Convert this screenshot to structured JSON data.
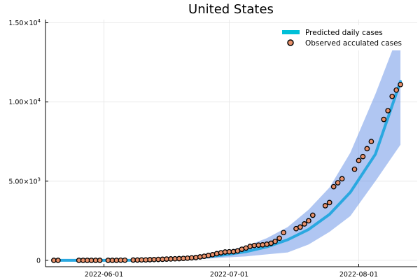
{
  "chart_data": {
    "type": "line",
    "title": "United States",
    "xlabel": "",
    "ylabel": "",
    "x_type": "date",
    "xlim": [
      "2022-05-18",
      "2022-08-15"
    ],
    "ylim": [
      -400,
      15200
    ],
    "x_ticks": [
      {
        "value": "2022-06-01",
        "label": "2022-06-01"
      },
      {
        "value": "2022-07-01",
        "label": "2022-07-01"
      },
      {
        "value": "2022-08-01",
        "label": "2022-08-01"
      }
    ],
    "y_ticks": [
      {
        "value": 0,
        "base": "0",
        "exp": ""
      },
      {
        "value": 5000,
        "base": "5.00×10",
        "exp": "3"
      },
      {
        "value": 10000,
        "base": "1.00×10",
        "exp": "4"
      },
      {
        "value": 15000,
        "base": "1.50×10",
        "exp": "4"
      }
    ],
    "grid": true,
    "legend_position": "top-right",
    "legend": [
      {
        "label": "Predicted daily cases",
        "kind": "line",
        "color": "#00c0d8"
      },
      {
        "label": "Observed acculated cases",
        "kind": "marker",
        "color": "#e8906a"
      }
    ],
    "colors": {
      "band": "#6f98e8",
      "predicted": "#2aa8e0",
      "observed_fill": "#e8906a",
      "observed_edge": "#000000"
    },
    "series": [
      {
        "name": "Predicted daily cases",
        "kind": "line",
        "x": [
          "2022-05-20",
          "2022-06-01",
          "2022-06-10",
          "2022-06-20",
          "2022-06-25",
          "2022-06-30",
          "2022-07-05",
          "2022-07-10",
          "2022-07-15",
          "2022-07-20",
          "2022-07-25",
          "2022-07-30",
          "2022-08-05",
          "2022-08-11"
        ],
        "y": [
          0,
          0,
          5,
          100,
          200,
          350,
          550,
          850,
          1300,
          1950,
          2900,
          4300,
          6700,
          11300
        ],
        "lower": [
          0,
          0,
          0,
          50,
          100,
          180,
          250,
          380,
          500,
          1000,
          1800,
          2800,
          5000,
          7300
        ],
        "upper": [
          0,
          0,
          20,
          180,
          300,
          560,
          900,
          1400,
          2100,
          3200,
          4600,
          6800,
          10500,
          14600
        ]
      },
      {
        "name": "Observed acculated cases",
        "kind": "scatter",
        "points": [
          [
            "2022-05-20",
            0
          ],
          [
            "2022-05-21",
            0
          ],
          [
            "2022-05-26",
            0
          ],
          [
            "2022-05-27",
            0
          ],
          [
            "2022-05-28",
            0
          ],
          [
            "2022-05-29",
            0
          ],
          [
            "2022-05-30",
            0
          ],
          [
            "2022-05-31",
            0
          ],
          [
            "2022-06-02",
            0
          ],
          [
            "2022-06-03",
            0
          ],
          [
            "2022-06-04",
            0
          ],
          [
            "2022-06-05",
            10
          ],
          [
            "2022-06-06",
            10
          ],
          [
            "2022-06-08",
            20
          ],
          [
            "2022-06-09",
            20
          ],
          [
            "2022-06-10",
            30
          ],
          [
            "2022-06-11",
            30
          ],
          [
            "2022-06-12",
            40
          ],
          [
            "2022-06-13",
            50
          ],
          [
            "2022-06-14",
            60
          ],
          [
            "2022-06-15",
            70
          ],
          [
            "2022-06-16",
            80
          ],
          [
            "2022-06-17",
            90
          ],
          [
            "2022-06-18",
            100
          ],
          [
            "2022-06-19",
            110
          ],
          [
            "2022-06-20",
            120
          ],
          [
            "2022-06-21",
            140
          ],
          [
            "2022-06-22",
            160
          ],
          [
            "2022-06-23",
            180
          ],
          [
            "2022-06-24",
            220
          ],
          [
            "2022-06-25",
            260
          ],
          [
            "2022-06-26",
            310
          ],
          [
            "2022-06-27",
            360
          ],
          [
            "2022-06-28",
            420
          ],
          [
            "2022-06-29",
            480
          ],
          [
            "2022-06-30",
            530
          ],
          [
            "2022-07-01",
            540
          ],
          [
            "2022-07-02",
            550
          ],
          [
            "2022-07-03",
            600
          ],
          [
            "2022-07-04",
            700
          ],
          [
            "2022-07-05",
            780
          ],
          [
            "2022-07-06",
            880
          ],
          [
            "2022-07-07",
            940
          ],
          [
            "2022-07-08",
            960
          ],
          [
            "2022-07-09",
            980
          ],
          [
            "2022-07-10",
            1020
          ],
          [
            "2022-07-11",
            1080
          ],
          [
            "2022-07-12",
            1200
          ],
          [
            "2022-07-13",
            1400
          ],
          [
            "2022-07-14",
            1750
          ],
          [
            "2022-07-17",
            2000
          ],
          [
            "2022-07-18",
            2100
          ],
          [
            "2022-07-19",
            2300
          ],
          [
            "2022-07-20",
            2500
          ],
          [
            "2022-07-21",
            2850
          ],
          [
            "2022-07-24",
            3450
          ],
          [
            "2022-07-25",
            3650
          ],
          [
            "2022-07-26",
            4650
          ],
          [
            "2022-07-27",
            4900
          ],
          [
            "2022-07-28",
            5150
          ],
          [
            "2022-07-31",
            5750
          ],
          [
            "2022-08-01",
            6300
          ],
          [
            "2022-08-02",
            6550
          ],
          [
            "2022-08-03",
            7050
          ],
          [
            "2022-08-04",
            7500
          ],
          [
            "2022-08-07",
            8900
          ],
          [
            "2022-08-08",
            9450
          ],
          [
            "2022-08-09",
            10350
          ],
          [
            "2022-08-10",
            10750
          ],
          [
            "2022-08-11",
            11100
          ]
        ]
      }
    ]
  }
}
